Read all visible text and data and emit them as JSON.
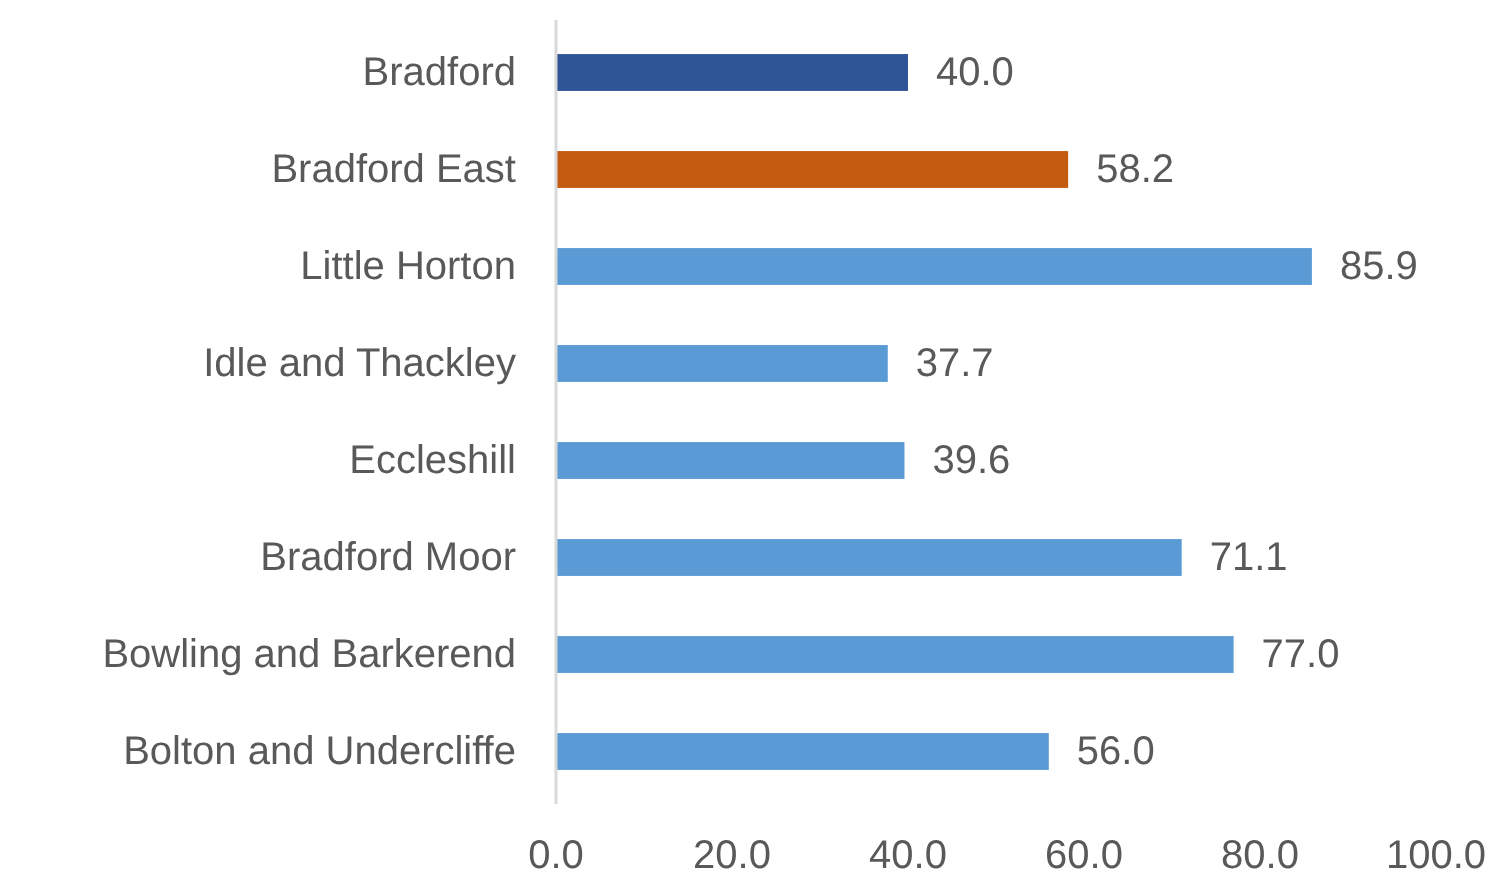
{
  "chart_data": {
    "type": "bar",
    "orientation": "horizontal",
    "categories": [
      "Bradford",
      "Bradford East",
      "Little Horton",
      "Idle and Thackley",
      "Eccleshill",
      "Bradford Moor",
      "Bowling and Barkerend",
      "Bolton and Undercliffe"
    ],
    "values": [
      40.0,
      58.2,
      85.9,
      37.7,
      39.6,
      71.1,
      77.0,
      56.0
    ],
    "value_labels": [
      "40.0",
      "58.2",
      "85.9",
      "37.7",
      "39.6",
      "71.1",
      "77.0",
      "56.0"
    ],
    "colors": [
      "#2f5597",
      "#c55a11",
      "#5b9bd5",
      "#5b9bd5",
      "#5b9bd5",
      "#5b9bd5",
      "#5b9bd5",
      "#5b9bd5"
    ],
    "xlim": [
      0,
      100
    ],
    "xticks": [
      {
        "value": 0,
        "label": "0.0"
      },
      {
        "value": 20,
        "label": "20.0"
      },
      {
        "value": 40,
        "label": "40.0"
      },
      {
        "value": 60,
        "label": "60.0"
      },
      {
        "value": 80,
        "label": "80.0"
      },
      {
        "value": 100,
        "label": "100.0"
      }
    ],
    "grid": false
  }
}
